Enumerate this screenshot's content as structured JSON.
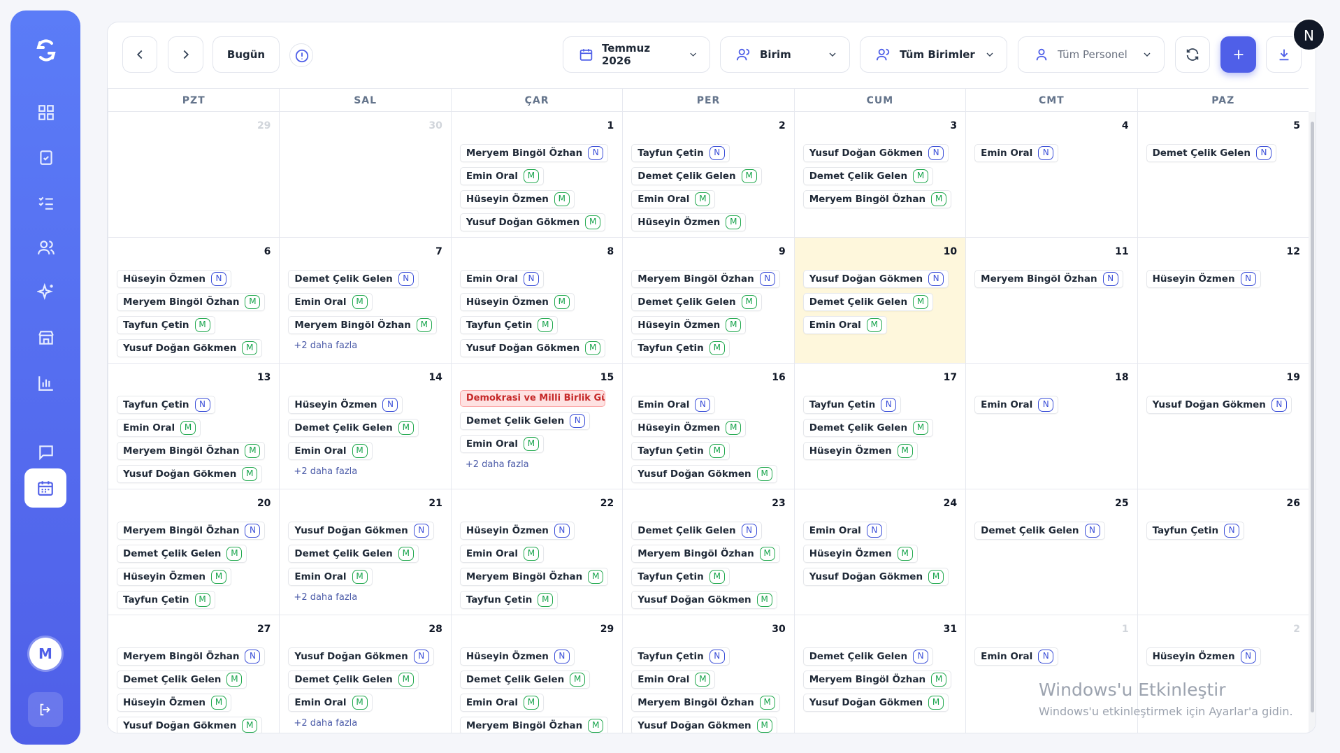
{
  "sidebar": {
    "avatar": "M"
  },
  "toolbar": {
    "today": "Bugün",
    "month": "Temmuz 2026",
    "unit_mode": "Birim",
    "units": "Tüm Birimler",
    "staff": "Tüm Personel"
  },
  "user_avatar": "N",
  "weekdays": [
    "PZT",
    "SAL",
    "ÇAR",
    "PER",
    "CUM",
    "CMT",
    "PAZ"
  ],
  "weeks": [
    {
      "days": [
        {
          "day": "29",
          "muted": true,
          "items": []
        },
        {
          "day": "30",
          "muted": true,
          "items": []
        },
        {
          "day": "1",
          "items": [
            [
              "Meryem Bingöl Özhan",
              "N"
            ],
            [
              "Emin Oral",
              "M"
            ],
            [
              "Hüseyin Özmen",
              "M"
            ],
            [
              "Yusuf Doğan Gökmen",
              "M"
            ]
          ]
        },
        {
          "day": "2",
          "items": [
            [
              "Tayfun Çetin",
              "N"
            ],
            [
              "Demet Çelik Gelen",
              "M"
            ],
            [
              "Emin Oral",
              "M"
            ],
            [
              "Hüseyin Özmen",
              "M"
            ]
          ]
        },
        {
          "day": "3",
          "items": [
            [
              "Yusuf Doğan Gökmen",
              "N"
            ],
            [
              "Demet Çelik Gelen",
              "M"
            ],
            [
              "Meryem Bingöl Özhan",
              "M"
            ]
          ]
        },
        {
          "day": "4",
          "items": [
            [
              "Emin Oral",
              "N"
            ]
          ]
        },
        {
          "day": "5",
          "items": [
            [
              "Demet Çelik Gelen",
              "N"
            ]
          ]
        }
      ]
    },
    {
      "days": [
        {
          "day": "6",
          "items": [
            [
              "Hüseyin Özmen",
              "N"
            ],
            [
              "Meryem Bingöl Özhan",
              "M"
            ],
            [
              "Tayfun Çetin",
              "M"
            ],
            [
              "Yusuf Doğan Gökmen",
              "M"
            ]
          ]
        },
        {
          "day": "7",
          "items": [
            [
              "Demet Çelik Gelen",
              "N"
            ],
            [
              "Emin Oral",
              "M"
            ],
            [
              "Meryem Bingöl Özhan",
              "M"
            ]
          ],
          "more": "+2 daha fazla"
        },
        {
          "day": "8",
          "items": [
            [
              "Emin Oral",
              "N"
            ],
            [
              "Hüseyin Özmen",
              "M"
            ],
            [
              "Tayfun Çetin",
              "M"
            ],
            [
              "Yusuf Doğan Gökmen",
              "M"
            ]
          ]
        },
        {
          "day": "9",
          "items": [
            [
              "Meryem Bingöl Özhan",
              "N"
            ],
            [
              "Demet Çelik Gelen",
              "M"
            ],
            [
              "Hüseyin Özmen",
              "M"
            ],
            [
              "Tayfun Çetin",
              "M"
            ]
          ]
        },
        {
          "day": "10",
          "today": true,
          "items": [
            [
              "Yusuf Doğan Gökmen",
              "N"
            ],
            [
              "Demet Çelik Gelen",
              "M"
            ],
            [
              "Emin Oral",
              "M"
            ]
          ]
        },
        {
          "day": "11",
          "items": [
            [
              "Meryem Bingöl Özhan",
              "N"
            ]
          ]
        },
        {
          "day": "12",
          "items": [
            [
              "Hüseyin Özmen",
              "N"
            ]
          ]
        }
      ]
    },
    {
      "days": [
        {
          "day": "13",
          "items": [
            [
              "Tayfun Çetin",
              "N"
            ],
            [
              "Emin Oral",
              "M"
            ],
            [
              "Meryem Bingöl Özhan",
              "M"
            ],
            [
              "Yusuf Doğan Gökmen",
              "M"
            ]
          ]
        },
        {
          "day": "14",
          "items": [
            [
              "Hüseyin Özmen",
              "N"
            ],
            [
              "Demet Çelik Gelen",
              "M"
            ],
            [
              "Emin Oral",
              "M"
            ]
          ],
          "more": "+2 daha fazla"
        },
        {
          "day": "15",
          "holiday": "Demokrasi ve Milli Birlik Günü",
          "items": [
            [
              "Demet Çelik Gelen",
              "N"
            ],
            [
              "Emin Oral",
              "M"
            ]
          ],
          "more": "+2 daha fazla"
        },
        {
          "day": "16",
          "items": [
            [
              "Emin Oral",
              "N"
            ],
            [
              "Hüseyin Özmen",
              "M"
            ],
            [
              "Tayfun Çetin",
              "M"
            ],
            [
              "Yusuf Doğan Gökmen",
              "M"
            ]
          ]
        },
        {
          "day": "17",
          "items": [
            [
              "Tayfun Çetin",
              "N"
            ],
            [
              "Demet Çelik Gelen",
              "M"
            ],
            [
              "Hüseyin Özmen",
              "M"
            ]
          ]
        },
        {
          "day": "18",
          "items": [
            [
              "Emin Oral",
              "N"
            ]
          ]
        },
        {
          "day": "19",
          "items": [
            [
              "Yusuf Doğan Gökmen",
              "N"
            ]
          ]
        }
      ]
    },
    {
      "days": [
        {
          "day": "20",
          "items": [
            [
              "Meryem Bingöl Özhan",
              "N"
            ],
            [
              "Demet Çelik Gelen",
              "M"
            ],
            [
              "Hüseyin Özmen",
              "M"
            ],
            [
              "Tayfun Çetin",
              "M"
            ]
          ]
        },
        {
          "day": "21",
          "items": [
            [
              "Yusuf Doğan Gökmen",
              "N"
            ],
            [
              "Demet Çelik Gelen",
              "M"
            ],
            [
              "Emin Oral",
              "M"
            ]
          ],
          "more": "+2 daha fazla"
        },
        {
          "day": "22",
          "items": [
            [
              "Hüseyin Özmen",
              "N"
            ],
            [
              "Emin Oral",
              "M"
            ],
            [
              "Meryem Bingöl Özhan",
              "M"
            ],
            [
              "Tayfun Çetin",
              "M"
            ]
          ]
        },
        {
          "day": "23",
          "items": [
            [
              "Demet Çelik Gelen",
              "N"
            ],
            [
              "Meryem Bingöl Özhan",
              "M"
            ],
            [
              "Tayfun Çetin",
              "M"
            ],
            [
              "Yusuf Doğan Gökmen",
              "M"
            ]
          ]
        },
        {
          "day": "24",
          "items": [
            [
              "Emin Oral",
              "N"
            ],
            [
              "Hüseyin Özmen",
              "M"
            ],
            [
              "Yusuf Doğan Gökmen",
              "M"
            ]
          ]
        },
        {
          "day": "25",
          "items": [
            [
              "Demet Çelik Gelen",
              "N"
            ]
          ]
        },
        {
          "day": "26",
          "items": [
            [
              "Tayfun Çetin",
              "N"
            ]
          ]
        }
      ]
    },
    {
      "days": [
        {
          "day": "27",
          "items": [
            [
              "Meryem Bingöl Özhan",
              "N"
            ],
            [
              "Demet Çelik Gelen",
              "M"
            ],
            [
              "Hüseyin Özmen",
              "M"
            ],
            [
              "Yusuf Doğan Gökmen",
              "M"
            ]
          ]
        },
        {
          "day": "28",
          "items": [
            [
              "Yusuf Doğan Gökmen",
              "N"
            ],
            [
              "Demet Çelik Gelen",
              "M"
            ],
            [
              "Emin Oral",
              "M"
            ]
          ],
          "more": "+2 daha fazla"
        },
        {
          "day": "29",
          "items": [
            [
              "Hüseyin Özmen",
              "N"
            ],
            [
              "Demet Çelik Gelen",
              "M"
            ],
            [
              "Emin Oral",
              "M"
            ],
            [
              "Meryem Bingöl Özhan",
              "M"
            ]
          ]
        },
        {
          "day": "30",
          "items": [
            [
              "Tayfun Çetin",
              "N"
            ],
            [
              "Emin Oral",
              "M"
            ],
            [
              "Meryem Bingöl Özhan",
              "M"
            ],
            [
              "Yusuf Doğan Gökmen",
              "M"
            ]
          ]
        },
        {
          "day": "31",
          "items": [
            [
              "Demet Çelik Gelen",
              "N"
            ],
            [
              "Meryem Bingöl Özhan",
              "M"
            ],
            [
              "Yusuf Doğan Gökmen",
              "M"
            ]
          ]
        },
        {
          "day": "1",
          "muted": true,
          "items": [
            [
              "Emin Oral",
              "N"
            ]
          ]
        },
        {
          "day": "2",
          "muted": true,
          "items": [
            [
              "Hüseyin Özmen",
              "N"
            ]
          ]
        }
      ]
    }
  ],
  "watermark": {
    "title": "Windows'u Etkinleştir",
    "text": "Windows'u etkinleştirmek için Ayarlar'a gidin."
  }
}
